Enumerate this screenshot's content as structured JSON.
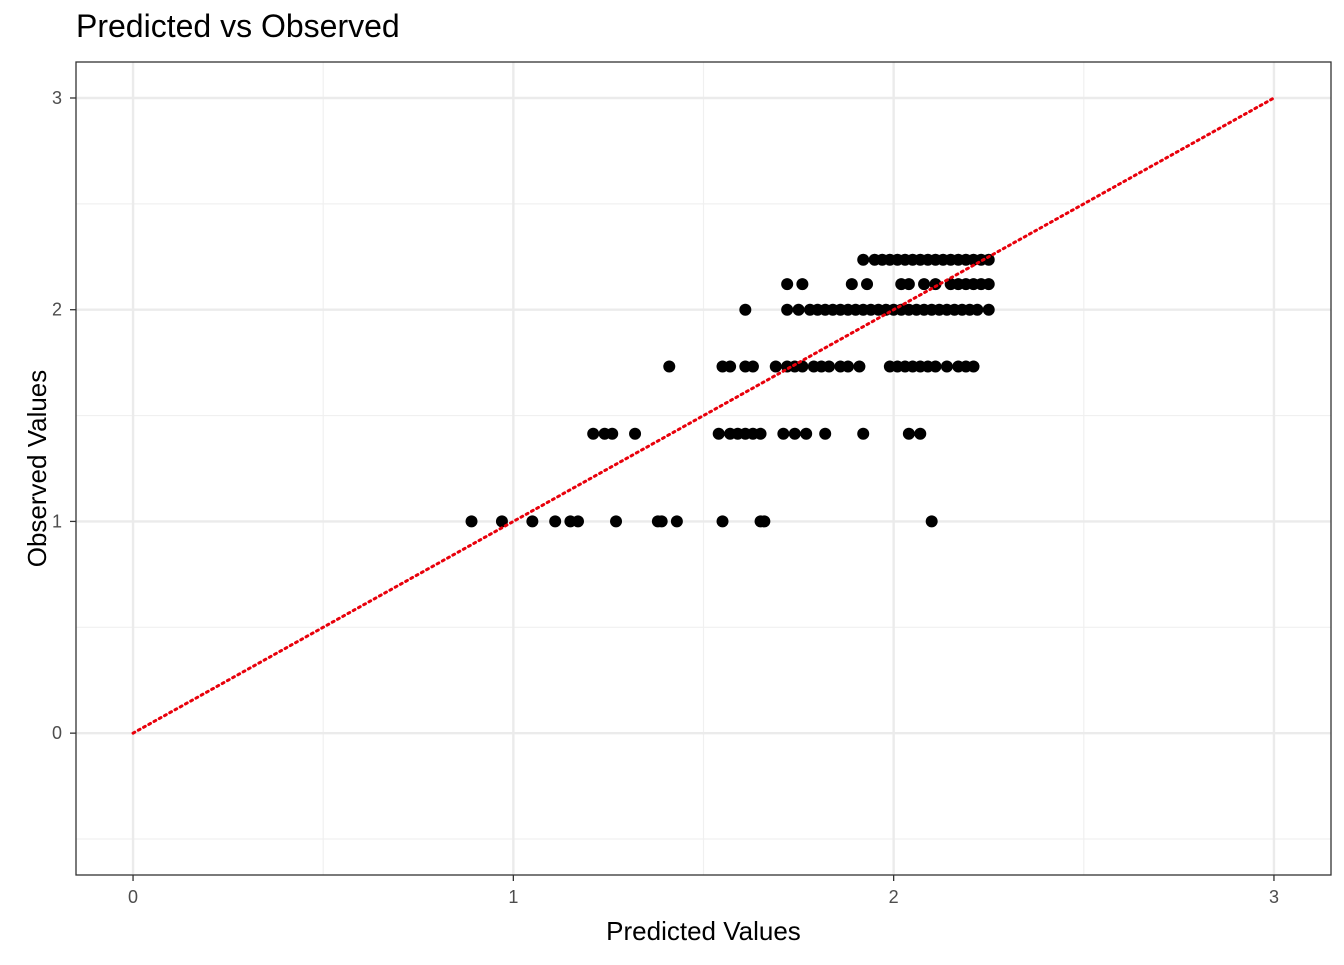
{
  "chart_data": {
    "type": "scatter",
    "title": "Predicted vs Observed",
    "xlabel": "Predicted Values",
    "ylabel": "Observed Values",
    "xlim": [
      -0.15,
      3.15
    ],
    "ylim": [
      -0.67,
      3.17
    ],
    "x_ticks": [
      "0",
      "1",
      "2",
      "3"
    ],
    "y_ticks": [
      "0",
      "1",
      "2",
      "3"
    ],
    "grid": true,
    "reference_line": {
      "type": "y=x",
      "x": [
        0,
        3
      ],
      "y": [
        0,
        3
      ],
      "style": "dotted",
      "color": "#e8000b"
    },
    "point_color": "#000000",
    "points": [
      [
        0.89,
        1.0
      ],
      [
        0.97,
        1.0
      ],
      [
        1.05,
        1.0
      ],
      [
        1.11,
        1.0
      ],
      [
        1.15,
        1.0
      ],
      [
        1.17,
        1.0
      ],
      [
        1.27,
        1.0
      ],
      [
        1.38,
        1.0
      ],
      [
        1.39,
        1.0
      ],
      [
        1.43,
        1.0
      ],
      [
        1.55,
        1.0
      ],
      [
        1.65,
        1.0
      ],
      [
        1.66,
        1.0
      ],
      [
        2.1,
        1.0
      ],
      [
        1.21,
        1.414
      ],
      [
        1.24,
        1.414
      ],
      [
        1.26,
        1.414
      ],
      [
        1.32,
        1.414
      ],
      [
        1.54,
        1.414
      ],
      [
        1.57,
        1.414
      ],
      [
        1.59,
        1.414
      ],
      [
        1.61,
        1.414
      ],
      [
        1.63,
        1.414
      ],
      [
        1.65,
        1.414
      ],
      [
        1.71,
        1.414
      ],
      [
        1.74,
        1.414
      ],
      [
        1.77,
        1.414
      ],
      [
        1.82,
        1.414
      ],
      [
        1.92,
        1.414
      ],
      [
        2.04,
        1.414
      ],
      [
        2.07,
        1.414
      ],
      [
        1.41,
        1.732
      ],
      [
        1.55,
        1.732
      ],
      [
        1.57,
        1.732
      ],
      [
        1.61,
        1.732
      ],
      [
        1.63,
        1.732
      ],
      [
        1.69,
        1.732
      ],
      [
        1.72,
        1.732
      ],
      [
        1.74,
        1.732
      ],
      [
        1.76,
        1.732
      ],
      [
        1.79,
        1.732
      ],
      [
        1.81,
        1.732
      ],
      [
        1.83,
        1.732
      ],
      [
        1.86,
        1.732
      ],
      [
        1.88,
        1.732
      ],
      [
        1.91,
        1.732
      ],
      [
        1.99,
        1.732
      ],
      [
        2.01,
        1.732
      ],
      [
        2.03,
        1.732
      ],
      [
        2.05,
        1.732
      ],
      [
        2.07,
        1.732
      ],
      [
        2.09,
        1.732
      ],
      [
        2.11,
        1.732
      ],
      [
        2.14,
        1.732
      ],
      [
        2.17,
        1.732
      ],
      [
        2.19,
        1.732
      ],
      [
        2.21,
        1.732
      ],
      [
        1.61,
        2.0
      ],
      [
        1.72,
        2.0
      ],
      [
        1.75,
        2.0
      ],
      [
        1.78,
        2.0
      ],
      [
        1.8,
        2.0
      ],
      [
        1.82,
        2.0
      ],
      [
        1.84,
        2.0
      ],
      [
        1.86,
        2.0
      ],
      [
        1.88,
        2.0
      ],
      [
        1.9,
        2.0
      ],
      [
        1.92,
        2.0
      ],
      [
        1.94,
        2.0
      ],
      [
        1.96,
        2.0
      ],
      [
        1.98,
        2.0
      ],
      [
        2.0,
        2.0
      ],
      [
        2.02,
        2.0
      ],
      [
        2.04,
        2.0
      ],
      [
        2.06,
        2.0
      ],
      [
        2.08,
        2.0
      ],
      [
        2.1,
        2.0
      ],
      [
        2.12,
        2.0
      ],
      [
        2.14,
        2.0
      ],
      [
        2.16,
        2.0
      ],
      [
        2.18,
        2.0
      ],
      [
        2.2,
        2.0
      ],
      [
        2.22,
        2.0
      ],
      [
        2.25,
        2.0
      ],
      [
        1.72,
        2.121
      ],
      [
        1.76,
        2.121
      ],
      [
        1.89,
        2.121
      ],
      [
        1.93,
        2.121
      ],
      [
        2.02,
        2.121
      ],
      [
        2.04,
        2.121
      ],
      [
        2.08,
        2.121
      ],
      [
        2.11,
        2.121
      ],
      [
        2.15,
        2.121
      ],
      [
        2.17,
        2.121
      ],
      [
        2.19,
        2.121
      ],
      [
        2.21,
        2.121
      ],
      [
        2.23,
        2.121
      ],
      [
        2.25,
        2.121
      ],
      [
        1.92,
        2.236
      ],
      [
        1.95,
        2.236
      ],
      [
        1.97,
        2.236
      ],
      [
        1.99,
        2.236
      ],
      [
        2.01,
        2.236
      ],
      [
        2.03,
        2.236
      ],
      [
        2.05,
        2.236
      ],
      [
        2.07,
        2.236
      ],
      [
        2.09,
        2.236
      ],
      [
        2.11,
        2.236
      ],
      [
        2.13,
        2.236
      ],
      [
        2.15,
        2.236
      ],
      [
        2.17,
        2.236
      ],
      [
        2.19,
        2.236
      ],
      [
        2.21,
        2.236
      ],
      [
        2.23,
        2.236
      ],
      [
        2.25,
        2.236
      ]
    ]
  }
}
